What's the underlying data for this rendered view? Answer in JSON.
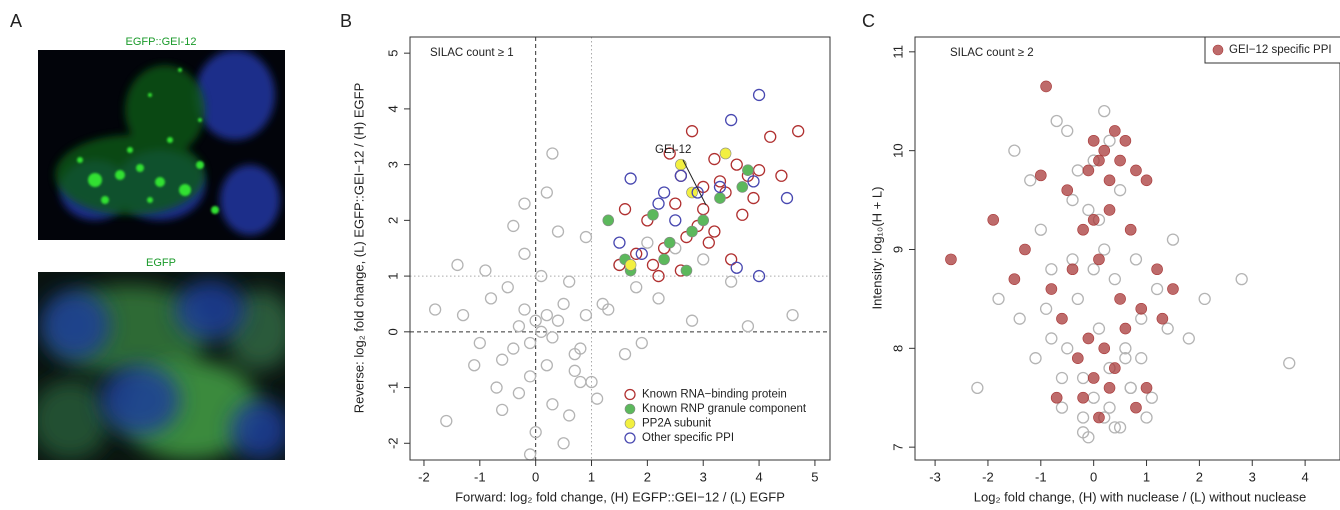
{
  "figure": {
    "panel_a": {
      "panel_label": "A",
      "captions": [
        "EGFP::GEI-12",
        "EGFP"
      ]
    }
  },
  "chart_data": [
    {
      "type": "scatter",
      "panel_label": "B",
      "xlabel": "Forward: log₂ fold change, (H) EGFP::GEI−12 / (L) EGFP",
      "ylabel": "Reverse: log₂ fold change, (L) EGFP::GEI−12 / (H) EGFP",
      "annotations": [
        "SILAC count ≥ 1",
        "GEI-12"
      ],
      "xlim": [
        -2.25,
        5.27
      ],
      "xticks": [
        -2,
        -1,
        0,
        1,
        2,
        3,
        4,
        5
      ],
      "ylim": [
        -2.3,
        5.29
      ],
      "yticks": [
        -2,
        -1,
        0,
        1,
        2,
        3,
        4,
        5
      ],
      "reference_lines": [
        {
          "axis": "x",
          "value": 0,
          "style": "dashed"
        },
        {
          "axis": "y",
          "value": 0,
          "style": "dashed"
        },
        {
          "axis": "x",
          "value": 1,
          "style": "dotted"
        },
        {
          "axis": "y",
          "value": 1,
          "style": "dotted"
        }
      ],
      "legend": "lower right",
      "background": {
        "color": "#b4b4b4",
        "x": [
          -0.3,
          -0.1,
          0.2,
          0.1,
          -0.4,
          0.3,
          -0.2,
          0.0,
          0.5,
          -0.6,
          0.4,
          -0.8,
          0.7,
          0.2,
          -0.1,
          -0.5,
          0.6,
          0.9,
          1.2,
          -1.0,
          0.1,
          -0.3,
          0.8,
          1.5,
          -1.3,
          0.3,
          -0.2,
          1.0,
          2.0,
          -0.7,
          0.4,
          1.3,
          -1.6,
          -1.8,
          2.5,
          0.0,
          -0.4,
          0.6,
          1.8,
          -0.9,
          2.2,
          3.0,
          3.5,
          -0.2,
          0.5,
          1.1,
          -1.1,
          0.2,
          1.6,
          2.8,
          0.9,
          -0.6,
          -1.4,
          0.7,
          0.3,
          1.9,
          3.8,
          -0.1,
          4.6,
          0.8
        ],
        "y": [
          0.1,
          -0.2,
          0.3,
          0.0,
          -0.3,
          -0.1,
          0.4,
          0.2,
          0.5,
          -0.5,
          0.2,
          0.6,
          -0.4,
          -0.6,
          -0.8,
          0.8,
          0.9,
          0.3,
          0.5,
          -0.2,
          1.0,
          -1.1,
          -0.3,
          1.2,
          0.3,
          -1.3,
          1.4,
          -0.9,
          1.6,
          -1.0,
          1.8,
          0.4,
          -1.6,
          0.4,
          1.5,
          -1.8,
          1.9,
          -1.5,
          0.8,
          1.1,
          0.6,
          1.3,
          0.9,
          2.3,
          -2.0,
          -1.2,
          -0.6,
          2.5,
          -0.4,
          0.2,
          1.7,
          -1.4,
          1.2,
          -0.7,
          3.2,
          -0.2,
          0.1,
          -2.2,
          0.3,
          -0.9
        ]
      },
      "series": [
        {
          "name": "Known RNA−binding protein",
          "color": "#b03030",
          "marker": "open",
          "x": [
            2.0,
            2.3,
            2.6,
            2.8,
            3.0,
            3.2,
            3.4,
            3.6,
            2.1,
            2.5,
            2.9,
            3.1,
            3.3,
            3.7,
            4.0,
            4.2,
            4.7,
            1.6,
            1.8,
            2.2,
            2.7,
            3.5,
            3.9,
            1.5,
            2.4,
            3.0,
            3.8,
            4.4,
            2.6,
            3.2
          ],
          "y": [
            2.0,
            1.5,
            2.8,
            3.6,
            2.2,
            1.8,
            2.5,
            3.0,
            1.2,
            2.3,
            1.9,
            1.6,
            2.7,
            2.1,
            2.9,
            3.5,
            3.6,
            2.2,
            1.4,
            1.0,
            1.7,
            1.3,
            2.4,
            1.2,
            3.2,
            2.6,
            2.8,
            2.8,
            1.1,
            3.1
          ]
        },
        {
          "name": "Known RNP granule component",
          "color": "#5cb85c",
          "marker": "filled",
          "x": [
            1.3,
            1.7,
            2.1,
            2.4,
            2.7,
            3.0,
            3.3,
            3.7,
            2.3,
            2.8,
            1.6,
            3.8
          ],
          "y": [
            2.0,
            1.1,
            2.1,
            1.6,
            1.1,
            2.0,
            2.4,
            2.6,
            1.3,
            1.8,
            1.3,
            2.9
          ]
        },
        {
          "name": "PP2A subunit",
          "color": "#f2f040",
          "marker": "filled",
          "x": [
            2.6,
            3.4,
            2.8,
            1.7
          ],
          "y": [
            3.0,
            3.2,
            2.5,
            1.2
          ]
        },
        {
          "name": "Other specific PPI",
          "color": "#4848b0",
          "marker": "open",
          "x": [
            1.5,
            1.9,
            2.2,
            2.5,
            2.6,
            2.9,
            3.3,
            3.5,
            3.9,
            4.0,
            4.5,
            3.6,
            2.3,
            1.7,
            4.0
          ],
          "y": [
            1.6,
            1.4,
            2.3,
            2.0,
            2.8,
            2.5,
            2.6,
            3.8,
            2.7,
            4.25,
            2.4,
            1.15,
            2.5,
            2.75,
            1.0
          ]
        }
      ]
    },
    {
      "type": "scatter",
      "panel_label": "C",
      "xlabel": "Log₂ fold change, (H) with nuclease / (L) without nuclease",
      "ylabel": "Intensity: log₁₀(H + L)",
      "annotations": [
        "SILAC count ≥ 2"
      ],
      "xlim": [
        -3.38,
        4.66
      ],
      "xticks": [
        -3,
        -2,
        -1,
        0,
        1,
        2,
        3,
        4
      ],
      "ylim": [
        6.87,
        11.15
      ],
      "yticks": [
        7,
        8,
        9,
        10,
        11
      ],
      "legend": "upper right",
      "background": {
        "color": "#b4b4b4",
        "x": [
          0.0,
          -0.2,
          0.3,
          -0.5,
          0.5,
          0.1,
          -0.3,
          0.7,
          -0.8,
          0.2,
          -0.1,
          0.4,
          -0.6,
          0.9,
          -1.0,
          0.6,
          -0.4,
          1.2,
          -1.2,
          0.0,
          0.3,
          -0.7,
          1.5,
          -1.5,
          0.8,
          -0.2,
          0.1,
          1.8,
          -2.2,
          2.8,
          3.7,
          -1.8,
          0.5,
          -0.9,
          1.0,
          -0.3,
          0.2,
          -0.5,
          0.6,
          2.1,
          -0.6,
          0.4,
          -1.1,
          1.4,
          0.0,
          -0.1,
          0.3,
          -1.4,
          1.1,
          -0.4,
          0.2,
          0.7,
          -0.8,
          0.9,
          -0.2
        ],
        "y": [
          7.5,
          7.3,
          7.8,
          8.0,
          7.2,
          8.2,
          8.5,
          7.6,
          8.8,
          9.0,
          7.1,
          8.7,
          7.4,
          8.3,
          9.2,
          7.9,
          9.5,
          8.6,
          9.7,
          9.9,
          10.1,
          10.3,
          9.1,
          10.0,
          8.9,
          7.7,
          9.3,
          8.1,
          7.6,
          8.7,
          7.85,
          8.5,
          9.6,
          8.4,
          7.3,
          9.8,
          10.4,
          10.2,
          8.0,
          8.5,
          7.7,
          7.2,
          7.9,
          8.2,
          8.8,
          9.4,
          7.4,
          8.3,
          7.5,
          8.9,
          7.3,
          7.6,
          8.1,
          7.9,
          7.15
        ]
      },
      "series": [
        {
          "name": "GEI−12 specific PPI",
          "color": "#a83a3a",
          "marker": "filled",
          "alpha": 0.75,
          "x": [
            0.0,
            0.2,
            0.4,
            0.5,
            -0.1,
            0.3,
            0.6,
            0.1,
            0.8,
            1.0,
            -0.9,
            -2.7,
            -1.9,
            -1.3,
            -0.5,
            -0.2,
            0.0,
            0.3,
            0.7,
            1.2,
            -0.8,
            -0.4,
            0.1,
            0.5,
            0.9,
            1.5,
            -0.6,
            -0.1,
            0.2,
            0.6,
            -1.5,
            -0.3,
            0.0,
            0.4,
            1.0,
            -0.7,
            -0.2,
            0.1,
            0.8,
            1.3,
            -1.0,
            0.3
          ],
          "y": [
            10.1,
            10.0,
            10.2,
            9.9,
            9.8,
            9.7,
            10.1,
            9.9,
            9.8,
            9.7,
            10.65,
            8.9,
            9.3,
            9.0,
            9.6,
            9.2,
            9.3,
            9.4,
            9.2,
            8.8,
            8.6,
            8.8,
            8.9,
            8.5,
            8.4,
            8.6,
            8.3,
            8.1,
            8.0,
            8.2,
            8.7,
            7.9,
            7.7,
            7.8,
            7.6,
            7.5,
            7.5,
            7.3,
            7.4,
            8.3,
            9.75,
            7.6
          ]
        }
      ]
    }
  ]
}
